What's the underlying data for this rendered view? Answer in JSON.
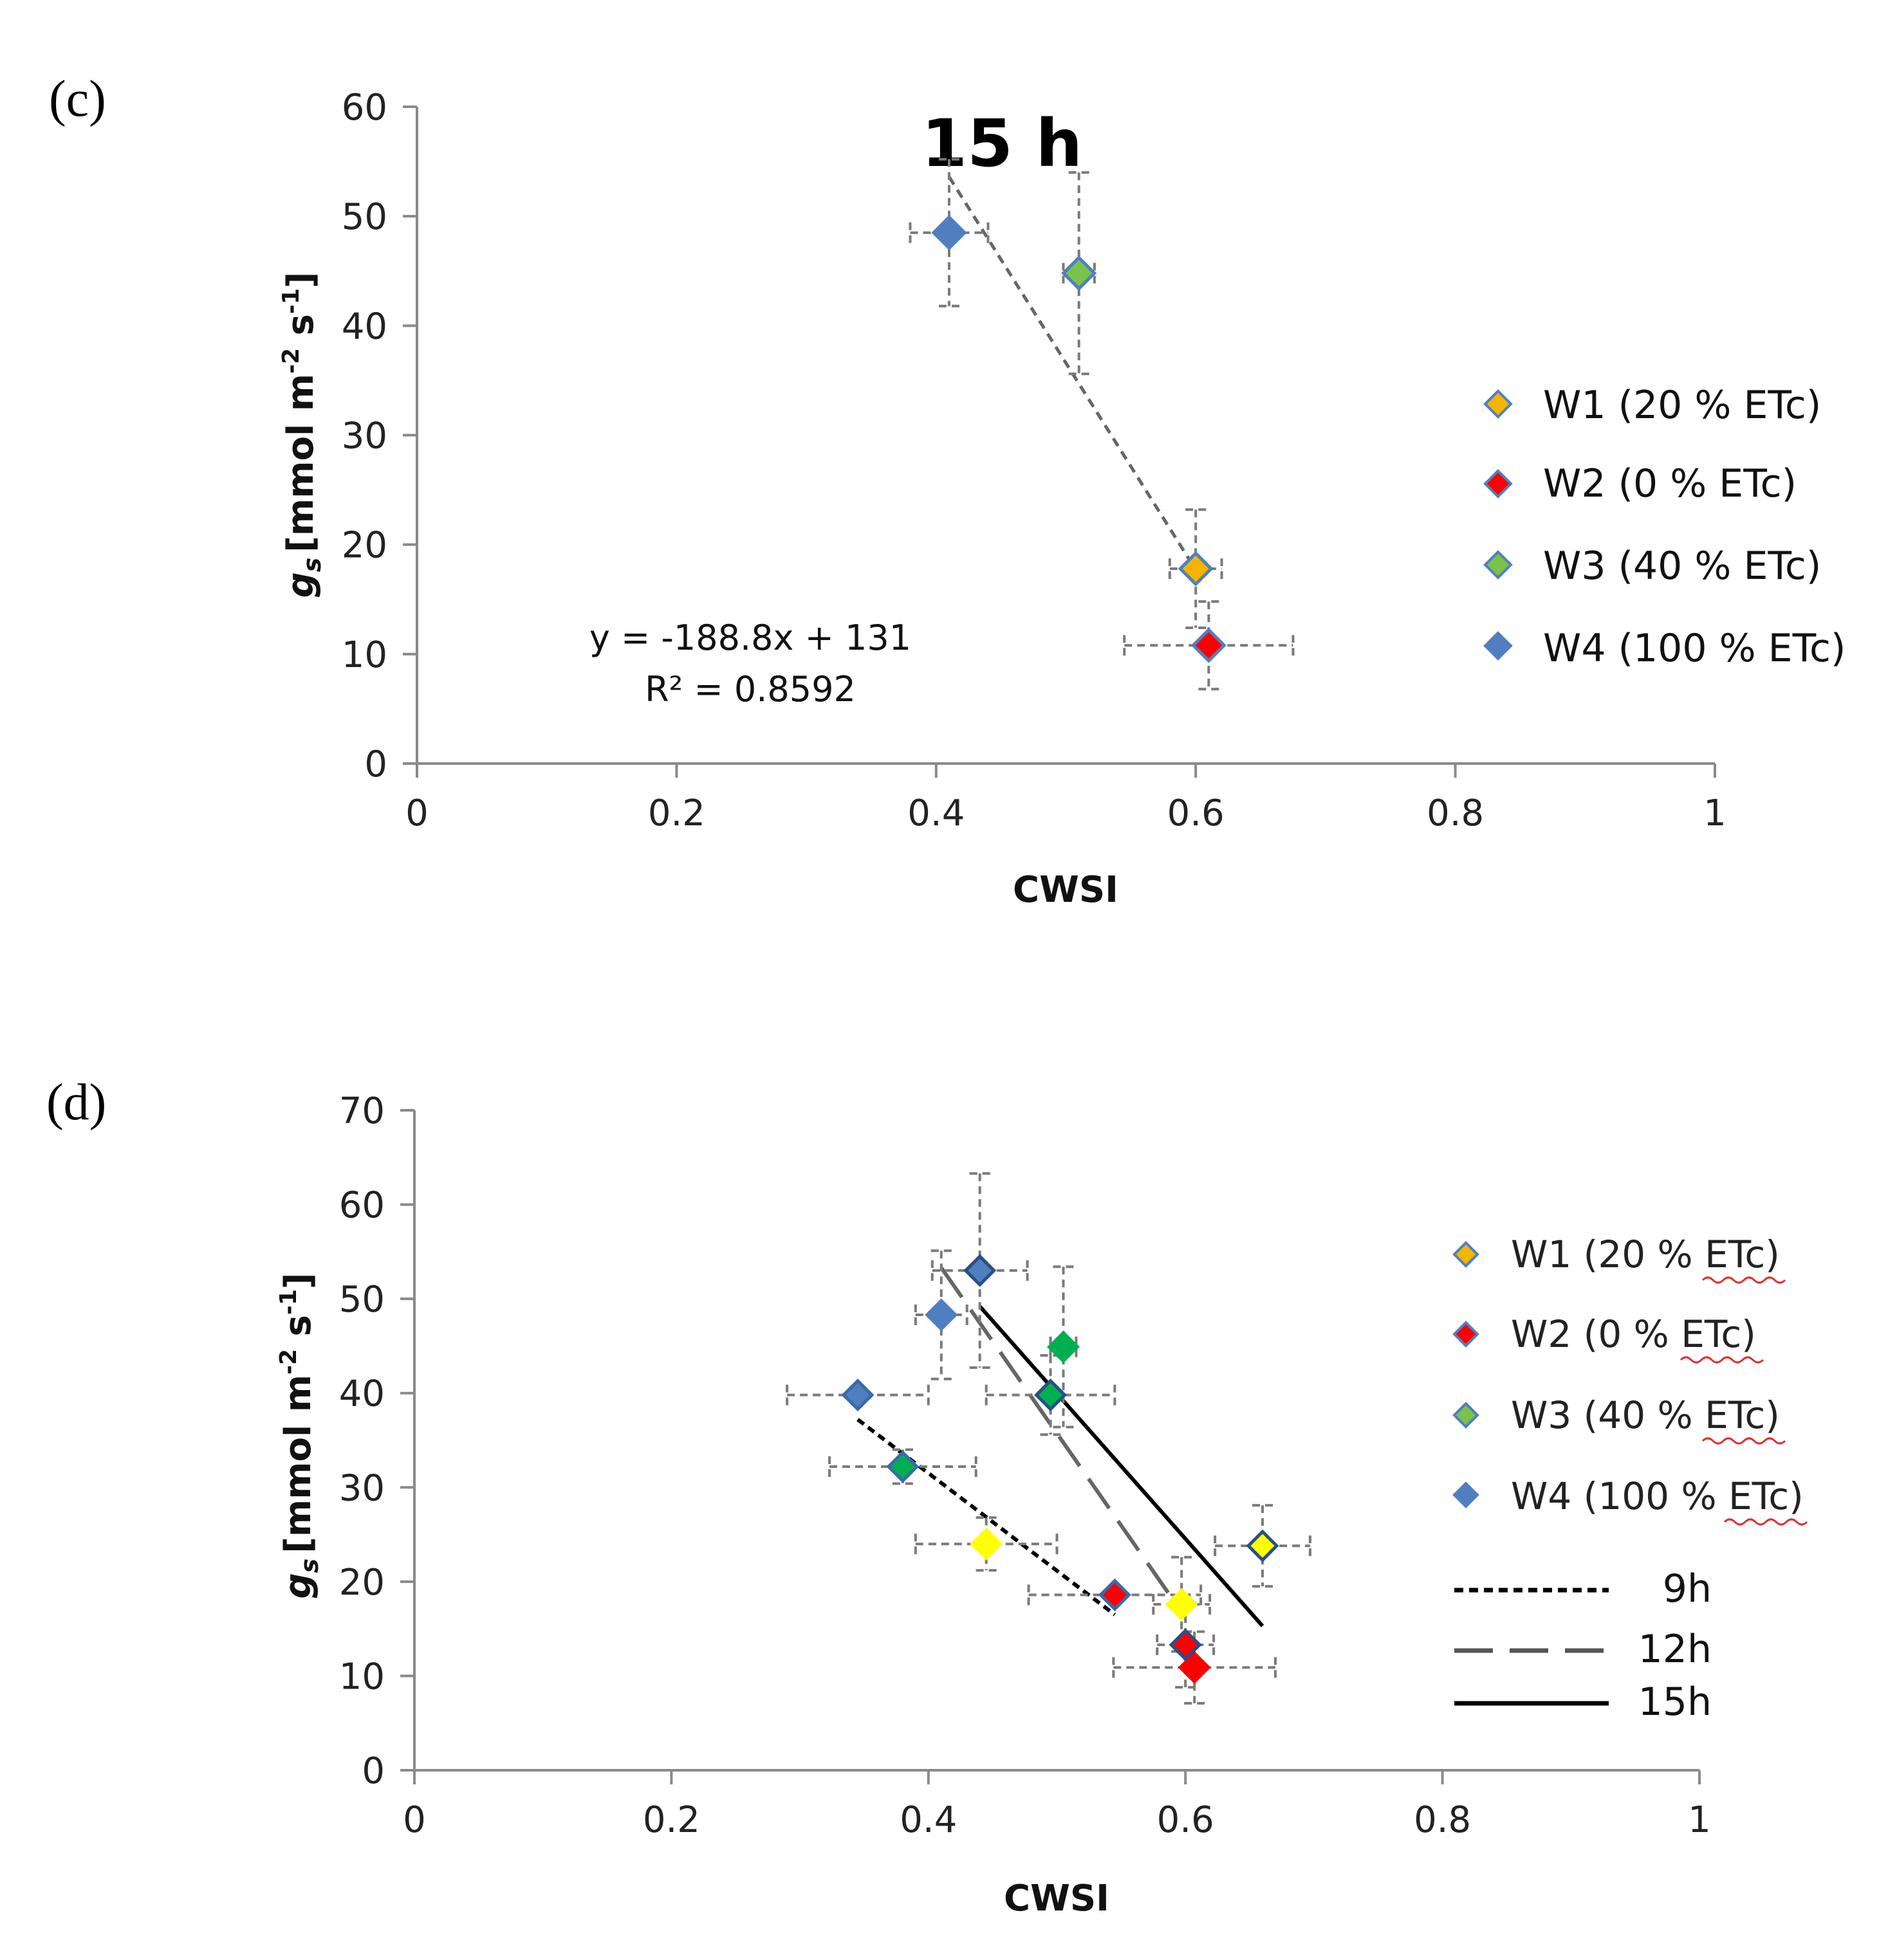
{
  "chart_data": [
    {
      "type": "scatter",
      "panel_label": "(c)",
      "annotation": "15 h",
      "xlabel": "CWSI",
      "ylabel_main": "g",
      "ylabel_sub": "s",
      "ylabel_unit": "[mmol m",
      "ylabel_exp1": "-2",
      "ylabel_mid": " s",
      "ylabel_exp2": "-1",
      "ylabel_end": "]",
      "xlim": [
        0,
        1
      ],
      "ylim": [
        0,
        60
      ],
      "xticks": [
        "0",
        "0.2",
        "0.4",
        "0.6",
        "0.8",
        "1"
      ],
      "yticks": [
        "0",
        "10",
        "20",
        "30",
        "40",
        "50",
        "60"
      ],
      "equation": "y = -188.8x + 131",
      "r2_label": "R² = 0.8592",
      "trendline": {
        "x": [
          0.41,
          0.6
        ],
        "y": [
          53.6,
          17.7
        ],
        "style": "dashed"
      },
      "series": [
        {
          "name": "W1 (20 % ETc)",
          "color": "#f4b400",
          "edge": "#4f7fc0",
          "x": 0.6,
          "y": 17.8,
          "xerr": 0.02,
          "yerr": 5.4
        },
        {
          "name": "W2 (0 % ETc)",
          "color": "#ff0000",
          "edge": "#4f7fc0",
          "x": 0.61,
          "y": 10.8,
          "xerr": 0.065,
          "yerr": 4.0
        },
        {
          "name": "W3 (40 % ETc)",
          "color": "#7bc24a",
          "edge": "#4f7fc0",
          "x": 0.51,
          "y": 44.8,
          "xerr": 0.012,
          "yerr": 9.2
        },
        {
          "name": "W4 (100 % ETc)",
          "color": "#4f7fc0",
          "edge": "#4f7fc0",
          "x": 0.41,
          "y": 48.5,
          "xerr": 0.03,
          "yerr": 6.7
        }
      ]
    },
    {
      "type": "scatter",
      "panel_label": "(d)",
      "xlabel": "CWSI",
      "ylabel_main": "g",
      "ylabel_sub": "s",
      "ylabel_unit": "[mmol m",
      "ylabel_exp1": "-2",
      "ylabel_mid": " s",
      "ylabel_exp2": "-1",
      "ylabel_end": "]",
      "xlim": [
        0,
        1
      ],
      "ylim": [
        0,
        70
      ],
      "xticks": [
        "0",
        "0.2",
        "0.4",
        "0.6",
        "0.8",
        "1"
      ],
      "yticks": [
        "0",
        "10",
        "20",
        "30",
        "40",
        "50",
        "60",
        "70"
      ],
      "legend_markers": [
        {
          "name": "W1 (20 % ETc)",
          "color": "#f4b400",
          "edge": "#4f7fc0"
        },
        {
          "name": "W2 (0 % ETc)",
          "color": "#ff0000",
          "edge": "#4f7fc0"
        },
        {
          "name": "W3 (40 % ETc)",
          "color": "#7bc24a",
          "edge": "#4f7fc0"
        },
        {
          "name": "W4 (100 % ETc)",
          "color": "#4f7fc0",
          "edge": "#4f7fc0"
        }
      ],
      "legend_lines": [
        {
          "name": "9h",
          "style": "dotted"
        },
        {
          "name": "12h",
          "style": "longdash"
        },
        {
          "name": "15h",
          "style": "solid"
        }
      ],
      "trendlines": [
        {
          "name": "9h",
          "x": [
            0.345,
            0.545
          ],
          "y": [
            37.2,
            16.5
          ],
          "style": "dotted"
        },
        {
          "name": "12h",
          "x": [
            0.41,
            0.6
          ],
          "y": [
            53.3,
            16.2
          ],
          "style": "longdash"
        },
        {
          "name": "15h",
          "x": [
            0.44,
            0.66
          ],
          "y": [
            49.2,
            15.3
          ],
          "style": "solid"
        }
      ],
      "points": [
        {
          "group": "9h",
          "name": "W4",
          "color": "#4f7fc0",
          "edge": "#3a6aa8",
          "x": 0.345,
          "y": 39.8,
          "xerr": 0.055,
          "yerr": 0
        },
        {
          "group": "9h",
          "name": "W3",
          "color": "#00b050",
          "edge": "#3a6aa8",
          "x": 0.38,
          "y": 32.2,
          "xerr": 0.057,
          "yerr": 1.8
        },
        {
          "group": "9h",
          "name": "W1",
          "color": "#ffff00",
          "edge": "#ffff00",
          "x": 0.445,
          "y": 24.0,
          "xerr": 0.055,
          "yerr": 2.8
        },
        {
          "group": "9h",
          "name": "W2",
          "color": "#ff0000",
          "edge": "#3a6aa8",
          "x": 0.545,
          "y": 18.6,
          "xerr": 0.067,
          "yerr": 0
        },
        {
          "group": "12h",
          "name": "W4",
          "color": "#4f7fc0",
          "edge": "#4f7fc0",
          "x": 0.41,
          "y": 48.3,
          "xerr": 0.02,
          "yerr": 6.8
        },
        {
          "group": "12h",
          "name": "W3",
          "color": "#00b050",
          "edge": "#00b050",
          "x": 0.505,
          "y": 44.9,
          "xerr": 0.01,
          "yerr": 8.5
        },
        {
          "group": "12h",
          "name": "W1",
          "color": "#ffff00",
          "edge": "#ffff00",
          "x": 0.597,
          "y": 17.6,
          "xerr": 0.022,
          "yerr": 5.0
        },
        {
          "group": "12h",
          "name": "W2",
          "color": "#ff0000",
          "edge": "#ff0000",
          "x": 0.607,
          "y": 10.9,
          "xerr": 0.063,
          "yerr": 3.8
        },
        {
          "group": "15h",
          "name": "W4",
          "color": "#4f7fc0",
          "edge": "#2a4f85",
          "x": 0.44,
          "y": 53.0,
          "xerr": 0.037,
          "yerr": 10.3
        },
        {
          "group": "15h",
          "name": "W3",
          "color": "#00b050",
          "edge": "#2a4f85",
          "x": 0.495,
          "y": 39.8,
          "xerr": 0.05,
          "yerr": 4.2
        },
        {
          "group": "15h",
          "name": "W1",
          "color": "#ffff00",
          "edge": "#2a4f85",
          "x": 0.66,
          "y": 23.8,
          "xerr": 0.037,
          "yerr": 4.3
        },
        {
          "group": "15h",
          "name": "W2",
          "color": "#ff0000",
          "edge": "#2a4f85",
          "x": 0.6,
          "y": 13.3,
          "xerr": 0.022,
          "yerr": 4.5
        }
      ]
    }
  ]
}
